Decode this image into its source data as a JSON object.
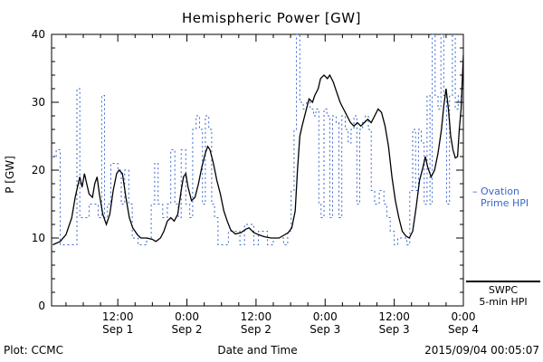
{
  "title": "Hemispheric Power [GW]",
  "footer": {
    "left": "Plot: CCMC",
    "center": "Date and Time",
    "right": "2015/09/04 00:05:07"
  },
  "legend": {
    "ovation": {
      "dash": "–",
      "line1": "Ovation",
      "line2": "Prime HPI",
      "color": "#3a66cc"
    },
    "swpc": {
      "line1": "SWPC",
      "line2": "5-min HPI",
      "color": "#000000"
    }
  },
  "axes": {
    "y_label": "P [GW]",
    "x_label": "Date and Time",
    "y_range": [
      0,
      40
    ],
    "y_ticks": [
      0,
      10,
      20,
      30,
      40
    ],
    "y_minor_step": 2,
    "x_range_hours": [
      0.5,
      72
    ],
    "x_minor_step_hours": 3,
    "x_ticks": [
      {
        "hour": 12,
        "time": "12:00",
        "date": "Sep 1"
      },
      {
        "hour": 24,
        "time": "0:00",
        "date": "Sep 2"
      },
      {
        "hour": 36,
        "time": "12:00",
        "date": "Sep 2"
      },
      {
        "hour": 48,
        "time": "0:00",
        "date": "Sep 3"
      },
      {
        "hour": 60,
        "time": "12:00",
        "date": "Sep 3"
      },
      {
        "hour": 72,
        "time": "0:00",
        "date": "Sep 4"
      }
    ]
  },
  "chart_data": {
    "type": "line",
    "title": "Hemispheric Power [GW]",
    "xlabel": "Date and Time",
    "ylabel": "P [GW]",
    "ylim": [
      0,
      40
    ],
    "x_units": "hours since 2015-09-01 00:00",
    "series": [
      {
        "name": "Ovation Prime HPI",
        "color": "#3a66cc",
        "style": "dotted-step",
        "points": [
          [
            0.5,
            22
          ],
          [
            1.3,
            23
          ],
          [
            2,
            9
          ],
          [
            4.6,
            9
          ],
          [
            4.9,
            32
          ],
          [
            5.4,
            13
          ],
          [
            6.6,
            13
          ],
          [
            7,
            15
          ],
          [
            8.2,
            15
          ],
          [
            8.6,
            13
          ],
          [
            9.2,
            31
          ],
          [
            9.7,
            13
          ],
          [
            10.2,
            15
          ],
          [
            10.8,
            21
          ],
          [
            12,
            20
          ],
          [
            12.6,
            15
          ],
          [
            13.2,
            20
          ],
          [
            13.9,
            15
          ],
          [
            14.5,
            10
          ],
          [
            15.5,
            9
          ],
          [
            17,
            10
          ],
          [
            17.8,
            15
          ],
          [
            18.4,
            21
          ],
          [
            19,
            15
          ],
          [
            19.8,
            13
          ],
          [
            20.6,
            15
          ],
          [
            21.2,
            23
          ],
          [
            21.9,
            15
          ],
          [
            22.5,
            13
          ],
          [
            23,
            23
          ],
          [
            23.8,
            15
          ],
          [
            24.5,
            13
          ],
          [
            25,
            26
          ],
          [
            25.6,
            28
          ],
          [
            26.2,
            26
          ],
          [
            26.7,
            15
          ],
          [
            27.2,
            28
          ],
          [
            27.8,
            26
          ],
          [
            28.3,
            15
          ],
          [
            28.8,
            13
          ],
          [
            29.4,
            9
          ],
          [
            30.6,
            9
          ],
          [
            31.2,
            11
          ],
          [
            32.6,
            11
          ],
          [
            33.2,
            9
          ],
          [
            34,
            12
          ],
          [
            35,
            12
          ],
          [
            35.6,
            9
          ],
          [
            36.4,
            11
          ],
          [
            37.4,
            11
          ],
          [
            38,
            9
          ],
          [
            39,
            10
          ],
          [
            40.2,
            10
          ],
          [
            40.8,
            9
          ],
          [
            41.5,
            11
          ],
          [
            42.1,
            17
          ],
          [
            42.6,
            26
          ],
          [
            43,
            40
          ],
          [
            43.6,
            30
          ],
          [
            44.2,
            29
          ],
          [
            44.8,
            30
          ],
          [
            45.4,
            29
          ],
          [
            46,
            28
          ],
          [
            46.4,
            29
          ],
          [
            46.9,
            15
          ],
          [
            47.3,
            13
          ],
          [
            47.8,
            29
          ],
          [
            48.3,
            28
          ],
          [
            48.8,
            13
          ],
          [
            49.3,
            28
          ],
          [
            49.9,
            27
          ],
          [
            50.4,
            13
          ],
          [
            50.9,
            28
          ],
          [
            51.5,
            26
          ],
          [
            52,
            24
          ],
          [
            52.5,
            26
          ],
          [
            53,
            28
          ],
          [
            53.5,
            15
          ],
          [
            54,
            26
          ],
          [
            54.5,
            27
          ],
          [
            55,
            28
          ],
          [
            55.5,
            26
          ],
          [
            56,
            17
          ],
          [
            56.6,
            15
          ],
          [
            57.4,
            17
          ],
          [
            58.2,
            15
          ],
          [
            58.7,
            13
          ],
          [
            59.3,
            11
          ],
          [
            60,
            9
          ],
          [
            60.6,
            10
          ],
          [
            61.6,
            10
          ],
          [
            62.2,
            9
          ],
          [
            62.7,
            17
          ],
          [
            63.2,
            26
          ],
          [
            63.7,
            17
          ],
          [
            64.2,
            26
          ],
          [
            64.7,
            24
          ],
          [
            65.2,
            15
          ],
          [
            65.7,
            31
          ],
          [
            66.2,
            15
          ],
          [
            66.6,
            40
          ],
          [
            67.1,
            31
          ],
          [
            67.6,
            29
          ],
          [
            68.1,
            40
          ],
          [
            68.6,
            31
          ],
          [
            69.1,
            15
          ],
          [
            69.6,
            31
          ],
          [
            70.1,
            40
          ],
          [
            70.6,
            29
          ],
          [
            71.1,
            31
          ],
          [
            71.6,
            30
          ],
          [
            72,
            30
          ]
        ]
      },
      {
        "name": "SWPC 5-min HPI",
        "color": "#000000",
        "style": "solid-line",
        "points": [
          [
            0.7,
            9
          ],
          [
            2,
            9.5
          ],
          [
            3,
            10.5
          ],
          [
            4,
            13
          ],
          [
            4.6,
            16
          ],
          [
            5,
            17.5
          ],
          [
            5.4,
            19
          ],
          [
            5.8,
            17.5
          ],
          [
            6.2,
            19.5
          ],
          [
            6.6,
            18
          ],
          [
            7,
            16.5
          ],
          [
            7.6,
            16
          ],
          [
            8,
            18
          ],
          [
            8.4,
            19
          ],
          [
            8.8,
            16.5
          ],
          [
            9.4,
            13.5
          ],
          [
            10,
            12
          ],
          [
            10.6,
            13.5
          ],
          [
            11.2,
            17
          ],
          [
            11.8,
            19.5
          ],
          [
            12.2,
            20
          ],
          [
            12.8,
            19.5
          ],
          [
            13.4,
            16
          ],
          [
            14,
            13
          ],
          [
            14.6,
            11.5
          ],
          [
            15.4,
            10.5
          ],
          [
            16,
            10
          ],
          [
            17,
            10
          ],
          [
            18,
            9.8
          ],
          [
            18.6,
            9.5
          ],
          [
            19.4,
            10
          ],
          [
            20,
            11
          ],
          [
            20.6,
            12.5
          ],
          [
            21.2,
            13
          ],
          [
            21.8,
            12.5
          ],
          [
            22.4,
            13.5
          ],
          [
            23,
            17
          ],
          [
            23.4,
            19
          ],
          [
            23.8,
            19.5
          ],
          [
            24.2,
            17.5
          ],
          [
            24.8,
            15.5
          ],
          [
            25.4,
            16
          ],
          [
            26,
            18
          ],
          [
            26.6,
            20.5
          ],
          [
            27.2,
            22.5
          ],
          [
            27.6,
            23.5
          ],
          [
            28,
            23
          ],
          [
            28.6,
            21
          ],
          [
            29.2,
            18.5
          ],
          [
            29.8,
            16.5
          ],
          [
            30.4,
            14
          ],
          [
            31,
            12.5
          ],
          [
            31.6,
            11.2
          ],
          [
            32.4,
            10.6
          ],
          [
            33.4,
            10.8
          ],
          [
            34.2,
            11.3
          ],
          [
            34.8,
            11.5
          ],
          [
            35.6,
            10.8
          ],
          [
            36.4,
            10.5
          ],
          [
            37.4,
            10.2
          ],
          [
            38.6,
            10
          ],
          [
            40,
            10
          ],
          [
            40.8,
            10.4
          ],
          [
            41.6,
            10.8
          ],
          [
            42.2,
            11.5
          ],
          [
            42.8,
            14
          ],
          [
            43.2,
            20
          ],
          [
            43.6,
            25
          ],
          [
            44,
            26.5
          ],
          [
            44.6,
            28.5
          ],
          [
            45.2,
            30.5
          ],
          [
            45.8,
            30
          ],
          [
            46.2,
            31
          ],
          [
            46.8,
            32
          ],
          [
            47.2,
            33.5
          ],
          [
            47.8,
            34
          ],
          [
            48.4,
            33.5
          ],
          [
            48.8,
            34
          ],
          [
            49.4,
            33
          ],
          [
            50,
            31.5
          ],
          [
            50.6,
            30
          ],
          [
            51.2,
            29
          ],
          [
            51.8,
            28
          ],
          [
            52.4,
            27
          ],
          [
            53,
            26.5
          ],
          [
            53.6,
            27
          ],
          [
            54.2,
            26.5
          ],
          [
            54.8,
            27
          ],
          [
            55.4,
            27.5
          ],
          [
            56,
            27
          ],
          [
            56.6,
            28
          ],
          [
            57.2,
            29
          ],
          [
            57.8,
            28.5
          ],
          [
            58.4,
            26.5
          ],
          [
            59,
            23.5
          ],
          [
            59.6,
            19
          ],
          [
            60.2,
            15.5
          ],
          [
            60.8,
            13
          ],
          [
            61.4,
            11
          ],
          [
            62,
            10.3
          ],
          [
            62.6,
            10
          ],
          [
            63.2,
            11
          ],
          [
            63.8,
            14.5
          ],
          [
            64.4,
            18.5
          ],
          [
            65,
            20.5
          ],
          [
            65.4,
            22
          ],
          [
            65.8,
            20.5
          ],
          [
            66.4,
            19
          ],
          [
            67,
            20
          ],
          [
            67.6,
            22.5
          ],
          [
            68.2,
            26
          ],
          [
            68.6,
            29.5
          ],
          [
            69,
            32
          ],
          [
            69.4,
            29
          ],
          [
            69.8,
            25
          ],
          [
            70.2,
            23
          ],
          [
            70.6,
            21.8
          ],
          [
            71,
            22
          ],
          [
            71.3,
            26
          ],
          [
            71.6,
            29
          ],
          [
            72,
            37
          ]
        ]
      }
    ]
  }
}
